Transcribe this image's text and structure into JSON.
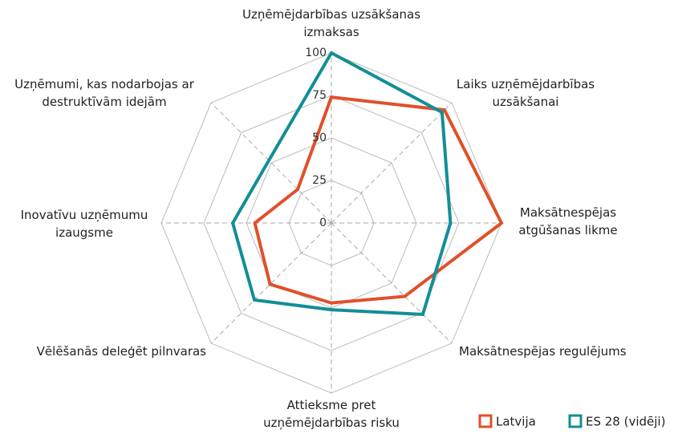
{
  "chart_data": {
    "type": "radar",
    "categories": [
      [
        "Uzņēmējdarbības uzsākšanas",
        "izmaksas"
      ],
      [
        "Laiks uzņēmējdarbības",
        "uzsākšanai"
      ],
      [
        "Maksātnespējas",
        "atgūšanas likme"
      ],
      [
        "Maksātnespējas regulējums"
      ],
      [
        "Attieksme pret",
        "uzņēmējdarbības risku"
      ],
      [
        "Vēlēšanās deleģēt pilnvaras"
      ],
      [
        "Inovatīvu uzņēmumu",
        "izaugsme"
      ],
      [
        "Uzņēmumi, kas nodarbojas ar",
        "destruktīvām idejām"
      ]
    ],
    "series": [
      {
        "name": "Latvija",
        "color": "#e0502a",
        "values": [
          74,
          94,
          100,
          61,
          47,
          51,
          45,
          28
        ]
      },
      {
        "name": "ES 28 (vidēji)",
        "color": "#138e96",
        "values": [
          100,
          92,
          70,
          76,
          51,
          64,
          58,
          52
        ]
      }
    ],
    "ylim": [
      0,
      100
    ],
    "yticks": [
      0,
      25,
      50,
      75,
      100
    ],
    "grid": true,
    "legend": "bottom-right"
  }
}
